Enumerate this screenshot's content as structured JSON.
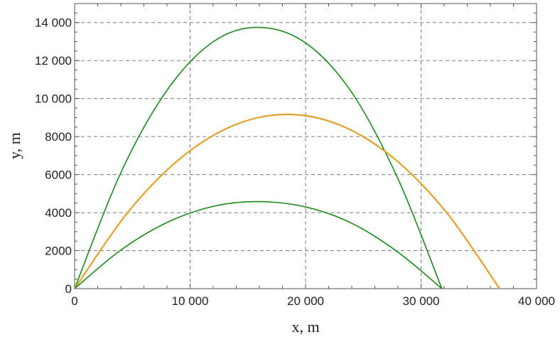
{
  "chart_data": {
    "type": "line",
    "title": "",
    "xlabel": "x, m",
    "ylabel": "y, m",
    "xlim": [
      0,
      40000
    ],
    "ylim": [
      0,
      15000
    ],
    "x_ticks": [
      0,
      10000,
      20000,
      30000,
      40000
    ],
    "y_ticks": [
      0,
      2000,
      4000,
      6000,
      8000,
      10000,
      12000,
      14000
    ],
    "x_tick_labels": [
      "0",
      "10 000",
      "20 000",
      "30 000",
      "40 000"
    ],
    "y_tick_labels": [
      "0",
      "2000",
      "4000",
      "6000",
      "8000",
      "10 000",
      "12 000",
      "14 000"
    ],
    "grid": true,
    "grid_style": "dashed",
    "series": [
      {
        "color": "#1a8a1a",
        "x": [
          0,
          4000,
          8000,
          12000,
          15900,
          20000,
          24000,
          28000,
          31800
        ],
        "y": [
          0,
          6100,
          10440,
          12990,
          13750,
          12930,
          10320,
          5780,
          0
        ]
      },
      {
        "color": "#e3a02a",
        "x": [
          0,
          4600,
          9200,
          13800,
          18400,
          23000,
          27600,
          32200,
          36800
        ],
        "y": [
          0,
          4010,
          6880,
          8600,
          9170,
          8600,
          6880,
          4010,
          0
        ]
      },
      {
        "color": "#1a8a1a",
        "x": [
          0,
          4000,
          8000,
          12000,
          15900,
          20000,
          24000,
          28000,
          31800
        ],
        "y": [
          0,
          2030,
          3480,
          4330,
          4580,
          4300,
          3440,
          1920,
          0
        ]
      }
    ]
  }
}
